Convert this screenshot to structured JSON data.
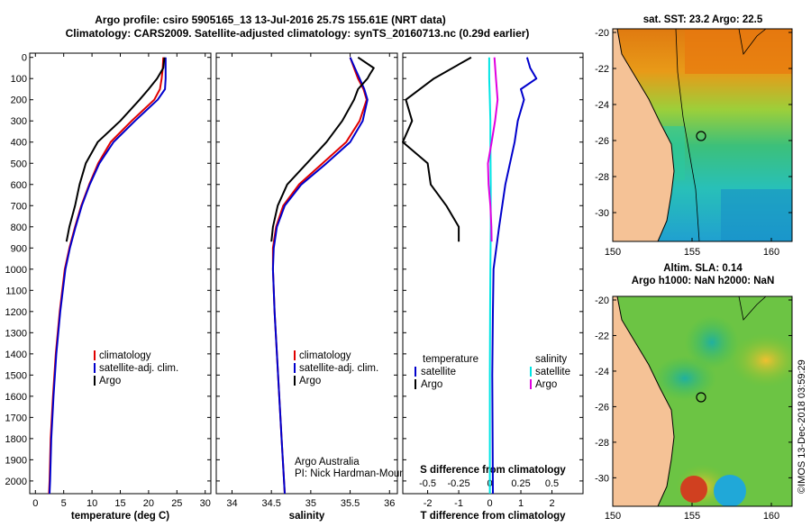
{
  "title": {
    "line1": "Argo profile: csiro 5905165_13 13-Jul-2016 25.7S 155.61E (NRT data)",
    "line2": "Climatology: CARS2009. Satellite-adjusted climatology: synTS_20160713.nc (0.29d earlier)"
  },
  "depth_ticks": [
    "0",
    "100",
    "200",
    "300",
    "400",
    "500",
    "600",
    "700",
    "800",
    "900",
    "1000",
    "1100",
    "1200",
    "1300",
    "1400",
    "1500",
    "1600",
    "1700",
    "1800",
    "1900",
    "2000"
  ],
  "colors": {
    "climatology": "#e00000",
    "satellite": "#0000cc",
    "argo": "#000000",
    "sat_salt": "#00e5e5",
    "argo_salt": "#e000e0",
    "land": "#f5c296"
  },
  "chart_data": [
    {
      "type": "line",
      "name": "temperature",
      "xlabel": "temperature (deg C)",
      "xlim": [
        -1,
        31
      ],
      "ylim": [
        2060,
        -20
      ],
      "xticks": [
        0,
        5,
        10,
        15,
        20,
        25,
        30
      ],
      "series": [
        {
          "name": "climatology",
          "depth": [
            0,
            50,
            100,
            150,
            200,
            300,
            400,
            500,
            600,
            700,
            800,
            900,
            1000,
            1200,
            1400,
            1600,
            1800,
            2000,
            2060
          ],
          "values": [
            22.6,
            22.5,
            22.3,
            22.0,
            21.0,
            17.0,
            13.3,
            11.1,
            9.5,
            8.1,
            7.0,
            6.0,
            5.2,
            4.3,
            3.6,
            3.1,
            2.7,
            2.5,
            2.4
          ]
        },
        {
          "name": "satellite-adj. clim.",
          "depth": [
            0,
            50,
            100,
            150,
            200,
            300,
            400,
            500,
            600,
            700,
            800,
            900,
            1000,
            1200,
            1400,
            1600,
            1800,
            2000,
            2060
          ],
          "values": [
            23.0,
            23.0,
            23.0,
            22.9,
            21.6,
            17.6,
            13.8,
            11.3,
            9.6,
            8.2,
            7.1,
            6.1,
            5.3,
            4.4,
            3.7,
            3.2,
            2.8,
            2.6,
            2.5
          ]
        },
        {
          "name": "Argo",
          "depth": [
            0,
            50,
            100,
            150,
            200,
            300,
            400,
            500,
            600,
            700,
            800,
            870
          ],
          "values": [
            22.8,
            22.6,
            21.5,
            20.0,
            18.4,
            15.0,
            11.0,
            8.9,
            7.8,
            7.0,
            6.0,
            5.5
          ]
        }
      ],
      "legend": [
        "climatology",
        "satellite-adj. clim.",
        "Argo"
      ]
    },
    {
      "type": "line",
      "name": "salinity",
      "xlabel": "salinity",
      "xlim": [
        33.8,
        36.1
      ],
      "ylim": [
        2060,
        -20
      ],
      "xticks": [
        34,
        34.5,
        35,
        35.5,
        36
      ],
      "series": [
        {
          "name": "climatology",
          "depth": [
            0,
            50,
            100,
            150,
            200,
            300,
            400,
            500,
            600,
            700,
            800,
            900,
            1000,
            1200,
            1400,
            1600,
            1800,
            2000,
            2060
          ],
          "values": [
            35.5,
            35.55,
            35.6,
            35.67,
            35.71,
            35.62,
            35.45,
            35.15,
            34.85,
            34.65,
            34.56,
            34.52,
            34.52,
            34.54,
            34.57,
            34.6,
            34.63,
            34.66,
            34.67
          ]
        },
        {
          "name": "satellite-adj. clim.",
          "depth": [
            0,
            50,
            100,
            150,
            200,
            300,
            400,
            500,
            600,
            700,
            800,
            900,
            1000,
            1200,
            1400,
            1600,
            1800,
            2000,
            2060
          ],
          "values": [
            35.5,
            35.56,
            35.62,
            35.68,
            35.72,
            35.66,
            35.5,
            35.2,
            34.88,
            34.67,
            34.57,
            34.53,
            34.52,
            34.54,
            34.57,
            34.6,
            34.63,
            34.66,
            34.67
          ]
        },
        {
          "name": "Argo",
          "depth": [
            0,
            50,
            80,
            100,
            150,
            200,
            300,
            400,
            500,
            600,
            700,
            800,
            870
          ],
          "values": [
            35.6,
            35.8,
            35.75,
            35.72,
            35.6,
            35.55,
            35.4,
            35.2,
            34.95,
            34.7,
            34.58,
            34.52,
            34.5
          ]
        }
      ],
      "legend": [
        "climatology",
        "satellite-adj. clim.",
        "Argo"
      ],
      "annotation": [
        "Argo Australia",
        "PI: Nick Hardman-Mountford"
      ]
    },
    {
      "type": "line",
      "name": "difference",
      "xlabel": "T difference from climatology",
      "xlim": [
        -2.8,
        3.0
      ],
      "ylim": [
        2060,
        -20
      ],
      "xticks": [
        "-2",
        "-1",
        "0",
        "1",
        "2"
      ],
      "s_label": "S difference from climatology",
      "s_ticks": [
        "-0.5",
        "-0.25",
        "0",
        "0.25",
        "0.5"
      ],
      "series": [
        {
          "name": "temperature satellite",
          "depth": [
            0,
            50,
            100,
            150,
            200,
            300,
            400,
            600,
            800,
            1000,
            1200,
            1500,
            2060
          ],
          "values": [
            1.2,
            1.3,
            1.5,
            1.0,
            1.1,
            0.9,
            0.8,
            0.5,
            0.3,
            0.12,
            0.1,
            0.08,
            0.1
          ]
        },
        {
          "name": "temperature Argo",
          "depth": [
            0,
            100,
            200,
            300,
            400,
            500,
            600,
            700,
            800,
            870
          ],
          "values": [
            -0.6,
            -1.8,
            -2.7,
            -2.5,
            -2.8,
            -2.0,
            -1.9,
            -1.4,
            -1.0,
            -1.0
          ]
        },
        {
          "name": "salinity satellite",
          "depth": [
            0,
            100,
            200,
            300,
            400,
            600,
            800,
            1000,
            1200,
            1500,
            2060
          ],
          "values": [
            -0.02,
            -0.02,
            0.0,
            0.02,
            0.02,
            0.03,
            0.03,
            0.02,
            0.01,
            0.0,
            0.0
          ]
        },
        {
          "name": "salinity Argo",
          "depth": [
            0,
            100,
            200,
            300,
            400,
            500,
            600,
            700,
            800,
            870
          ],
          "values": [
            0.15,
            0.2,
            0.25,
            0.17,
            0.06,
            -0.06,
            -0.04,
            0.02,
            0.05,
            0.06
          ]
        }
      ],
      "legend": {
        "temperature_title": "temperature",
        "salinity_title": "salinity",
        "satellite": "satellite",
        "argo": "Argo"
      }
    }
  ],
  "maps": {
    "sst": {
      "title": "sat. SST: 23.2 Argo: 22.5"
    },
    "sla": {
      "title_line1": "Altim. SLA: 0.14",
      "title_line2": "Argo h1000: NaN h2000: NaN"
    },
    "lat_ticks": [
      "-20",
      "-22",
      "-24",
      "-26",
      "-28",
      "-30"
    ],
    "lon_ticks": [
      "150",
      "155",
      "160"
    ]
  },
  "side_label": "©IMOS 13-Dec-2018 03:59:29"
}
